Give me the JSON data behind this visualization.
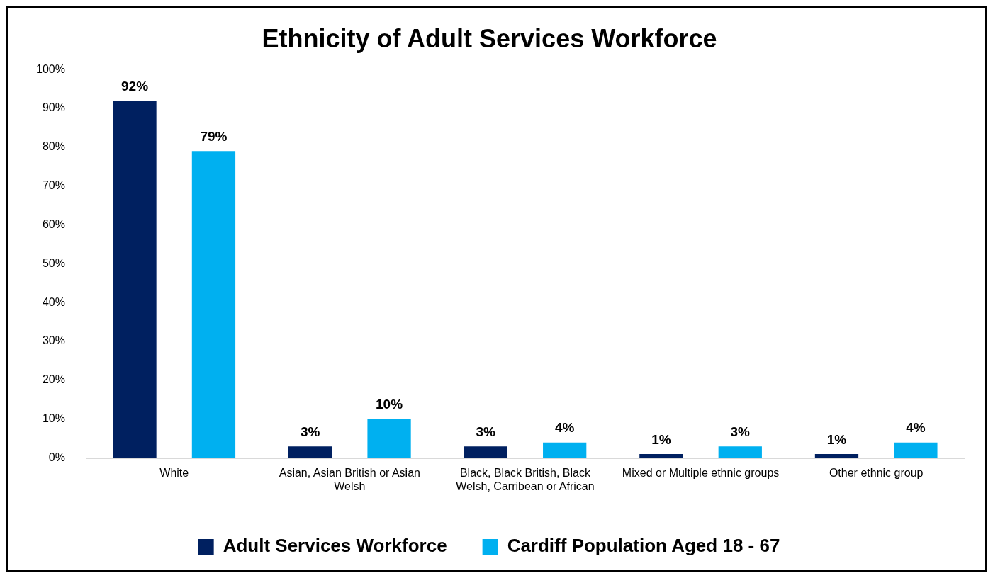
{
  "chart_data": {
    "type": "bar",
    "title": "Ethnicity of Adult Services Workforce",
    "categories": [
      "White",
      "Asian, Asian British or Asian Welsh",
      "Black, Black British, Black Welsh, Carribean or African",
      "Mixed or Multiple ethnic groups",
      "Other ethnic group"
    ],
    "series": [
      {
        "name": "Adult Services Workforce",
        "color": "#002060",
        "values": [
          92,
          3,
          3,
          1,
          1
        ],
        "value_labels": [
          "92%",
          "3%",
          "3%",
          "1%",
          "1%"
        ]
      },
      {
        "name": "Cardiff Population Aged 18 - 67",
        "color": "#00b0f0",
        "values": [
          79,
          10,
          4,
          3,
          4
        ],
        "value_labels": [
          "79%",
          "10%",
          "4%",
          "3%",
          "4%"
        ]
      }
    ],
    "ylim": [
      0,
      100
    ],
    "yticks": [
      {
        "value": 0,
        "label": "0%"
      },
      {
        "value": 10,
        "label": "10%"
      },
      {
        "value": 20,
        "label": "20%"
      },
      {
        "value": 30,
        "label": "30%"
      },
      {
        "value": 40,
        "label": "40%"
      },
      {
        "value": 50,
        "label": "50%"
      },
      {
        "value": 60,
        "label": "60%"
      },
      {
        "value": 70,
        "label": "70%"
      },
      {
        "value": 80,
        "label": "80%"
      },
      {
        "value": 90,
        "label": "90%"
      },
      {
        "value": 100,
        "label": "100%"
      }
    ],
    "grid": false,
    "legend": "bottom"
  }
}
